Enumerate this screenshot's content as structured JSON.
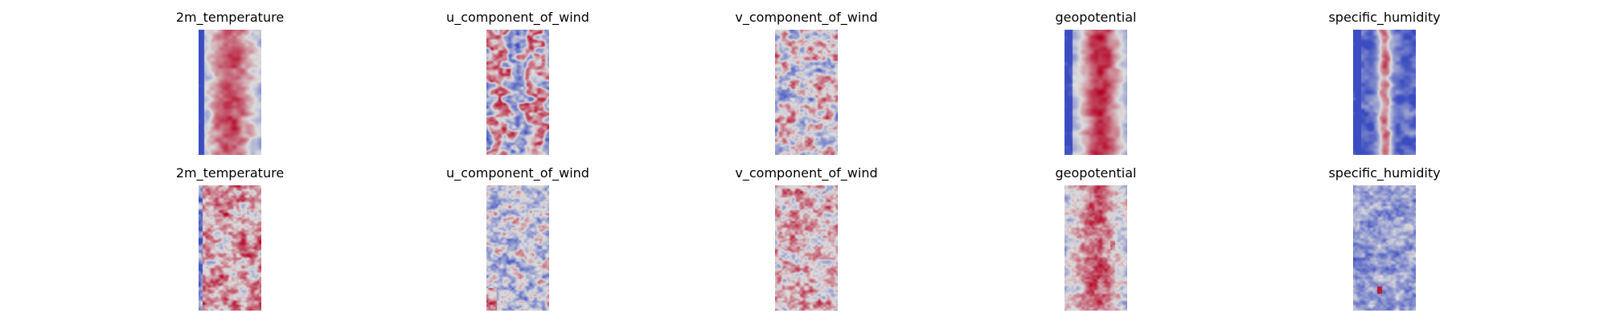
{
  "chart_data": [
    {
      "type": "heatmap",
      "title": "2m_temperature",
      "field": "2m_temperature",
      "row": 1,
      "column": 1,
      "pattern": "warm-band",
      "seed": 11
    },
    {
      "type": "heatmap",
      "title": "u_component_of_wind",
      "field": "u_component_of_wind",
      "row": 1,
      "column": 2,
      "pattern": "wind-u",
      "seed": 12
    },
    {
      "type": "heatmap",
      "title": "v_component_of_wind",
      "field": "v_component_of_wind",
      "row": 1,
      "column": 3,
      "pattern": "wind-v",
      "seed": 13
    },
    {
      "type": "heatmap",
      "title": "geopotential",
      "field": "geopotential",
      "row": 1,
      "column": 4,
      "pattern": "geo-band",
      "seed": 14
    },
    {
      "type": "heatmap",
      "title": "specific_humidity",
      "field": "specific_humidity",
      "row": 1,
      "column": 5,
      "pattern": "humid-cold",
      "seed": 15
    },
    {
      "type": "heatmap",
      "title": "2m_temperature",
      "field": "2m_temperature",
      "row": 2,
      "column": 1,
      "pattern": "warm-speckle",
      "seed": 21
    },
    {
      "type": "heatmap",
      "title": "u_component_of_wind",
      "field": "u_component_of_wind",
      "row": 2,
      "column": 2,
      "pattern": "wind-u2",
      "seed": 22
    },
    {
      "type": "heatmap",
      "title": "v_component_of_wind",
      "field": "v_component_of_wind",
      "row": 2,
      "column": 3,
      "pattern": "wind-v2",
      "seed": 23
    },
    {
      "type": "heatmap",
      "title": "geopotential",
      "field": "geopotential",
      "row": 2,
      "column": 4,
      "pattern": "geo-speckle",
      "seed": 24
    },
    {
      "type": "heatmap",
      "title": "specific_humidity",
      "field": "specific_humidity",
      "row": 2,
      "column": 5,
      "pattern": "humid-speckle",
      "seed": 25
    }
  ],
  "colormap": "coolwarm",
  "axes_visible": false,
  "colors": {
    "cool": "#3b4cc0",
    "neutral": "#dddddd",
    "warm": "#b40426"
  }
}
